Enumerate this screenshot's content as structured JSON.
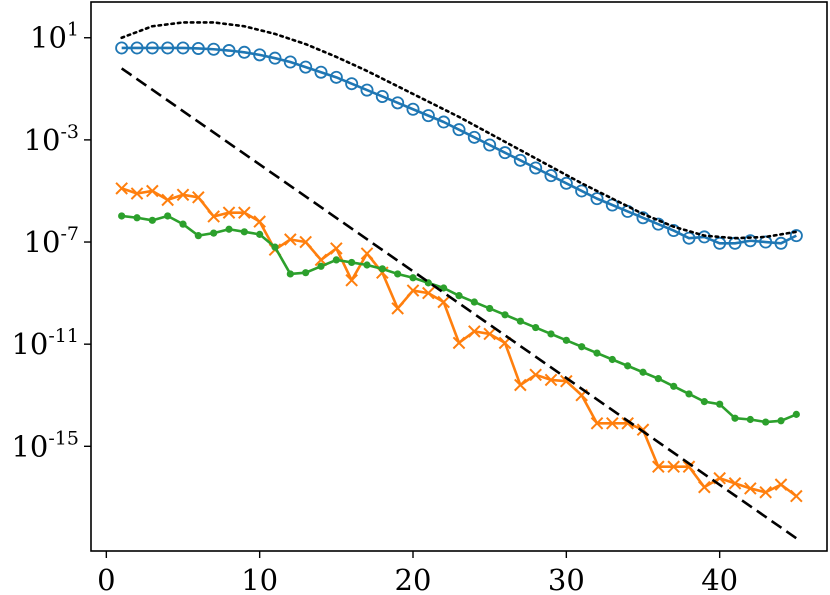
{
  "chart_data": {
    "type": "line",
    "title": "",
    "xlabel": "",
    "ylabel": "",
    "xlim": [
      -1,
      47
    ],
    "ylim_log10": [
      -19.1,
      2.4
    ],
    "yscale": "log",
    "grid": false,
    "legend": "none",
    "xticks": [
      0,
      10,
      20,
      30,
      40
    ],
    "xtick_labels": [
      "0",
      "10",
      "20",
      "30",
      "40"
    ],
    "yticks_log10": [
      1,
      -3,
      -7,
      -11,
      -15
    ],
    "ytick_labels": [
      {
        "base": "10",
        "exp": "1"
      },
      {
        "base": "10",
        "exp": "-3"
      },
      {
        "base": "10",
        "exp": "-7"
      },
      {
        "base": "10",
        "exp": "-11"
      },
      {
        "base": "10",
        "exp": "-15"
      }
    ],
    "series": [
      {
        "marker": "circle",
        "color": "#1f77b4",
        "line": "solid",
        "x": [
          1,
          2,
          3,
          4,
          5,
          6,
          7,
          8,
          9,
          10,
          11,
          12,
          13,
          14,
          15,
          16,
          17,
          18,
          19,
          20,
          21,
          22,
          23,
          24,
          25,
          26,
          27,
          28,
          29,
          30,
          31,
          32,
          33,
          34,
          35,
          36,
          37,
          38,
          39,
          40,
          41,
          42,
          43,
          44,
          45
        ],
        "log10_y": [
          0.6,
          0.6,
          0.6,
          0.6,
          0.6,
          0.58,
          0.55,
          0.5,
          0.43,
          0.33,
          0.2,
          0.05,
          -0.15,
          -0.35,
          -0.55,
          -0.8,
          -1.05,
          -1.3,
          -1.55,
          -1.8,
          -2.05,
          -2.3,
          -2.6,
          -2.9,
          -3.2,
          -3.5,
          -3.8,
          -4.1,
          -4.4,
          -4.7,
          -5.0,
          -5.3,
          -5.55,
          -5.8,
          -6.05,
          -6.3,
          -6.55,
          -6.85,
          -6.8,
          -7.05,
          -7.05,
          -6.95,
          -7.0,
          -7.05,
          -6.75
        ]
      },
      {
        "marker": "x",
        "color": "#ff7f0e",
        "line": "solid",
        "x": [
          1,
          2,
          3,
          4,
          5,
          6,
          7,
          8,
          9,
          10,
          11,
          12,
          13,
          14,
          15,
          16,
          17,
          18,
          19,
          20,
          21,
          22,
          23,
          24,
          25,
          26,
          27,
          28,
          29,
          30,
          31,
          32,
          33,
          34,
          35,
          36,
          37,
          38,
          39,
          40,
          41,
          42,
          43,
          44,
          45
        ],
        "log10_y": [
          -4.9,
          -5.1,
          -5.0,
          -5.35,
          -5.15,
          -5.25,
          -6.0,
          -5.85,
          -5.85,
          -6.2,
          -7.3,
          -6.9,
          -7.0,
          -7.7,
          -7.25,
          -8.5,
          -7.45,
          -8.2,
          -9.6,
          -8.9,
          -9.0,
          -9.35,
          -10.95,
          -10.5,
          -10.6,
          -10.95,
          -12.6,
          -12.2,
          -12.4,
          -12.45,
          -13.0,
          -14.1,
          -14.1,
          -14.1,
          -14.35,
          -15.8,
          -15.8,
          -15.8,
          -16.6,
          -16.25,
          -16.45,
          -16.65,
          -16.8,
          -16.5,
          -16.95
        ]
      },
      {
        "marker": "dot",
        "color": "#2ca02c",
        "line": "solid",
        "x": [
          1,
          2,
          3,
          4,
          5,
          6,
          7,
          8,
          9,
          10,
          11,
          12,
          13,
          14,
          15,
          16,
          17,
          18,
          19,
          20,
          21,
          22,
          23,
          24,
          25,
          26,
          27,
          28,
          29,
          30,
          31,
          32,
          33,
          34,
          35,
          36,
          37,
          38,
          39,
          40,
          41,
          42,
          43,
          44,
          45
        ],
        "log10_y": [
          -5.98,
          -6.05,
          -6.15,
          -5.98,
          -6.3,
          -6.75,
          -6.65,
          -6.5,
          -6.6,
          -6.7,
          -7.2,
          -8.25,
          -8.2,
          -7.95,
          -7.7,
          -7.8,
          -7.9,
          -8.05,
          -8.25,
          -8.4,
          -8.6,
          -8.8,
          -9.1,
          -9.35,
          -9.6,
          -9.85,
          -10.1,
          -10.35,
          -10.6,
          -10.85,
          -11.1,
          -11.35,
          -11.6,
          -11.85,
          -12.1,
          -12.35,
          -12.65,
          -12.95,
          -13.25,
          -13.35,
          -13.9,
          -13.95,
          -14.05,
          -14.0,
          -13.75
        ]
      },
      {
        "marker": "none",
        "color": "#000000",
        "line": "dashed",
        "x": [
          1,
          45
        ],
        "log10_y": [
          -0.2,
          -18.6
        ]
      },
      {
        "marker": "none",
        "color": "#000000",
        "line": "dotted",
        "x": [
          1,
          3,
          5,
          7,
          9,
          11,
          13,
          15,
          17,
          19,
          21,
          23,
          25,
          27,
          29,
          31,
          33,
          35,
          37,
          39,
          41,
          43,
          45
        ],
        "log10_y": [
          1.0,
          1.45,
          1.6,
          1.6,
          1.45,
          1.15,
          0.75,
          0.25,
          -0.3,
          -0.9,
          -1.5,
          -2.1,
          -2.75,
          -3.4,
          -4.05,
          -4.7,
          -5.3,
          -5.9,
          -6.4,
          -6.75,
          -6.85,
          -6.8,
          -6.6
        ]
      }
    ]
  }
}
